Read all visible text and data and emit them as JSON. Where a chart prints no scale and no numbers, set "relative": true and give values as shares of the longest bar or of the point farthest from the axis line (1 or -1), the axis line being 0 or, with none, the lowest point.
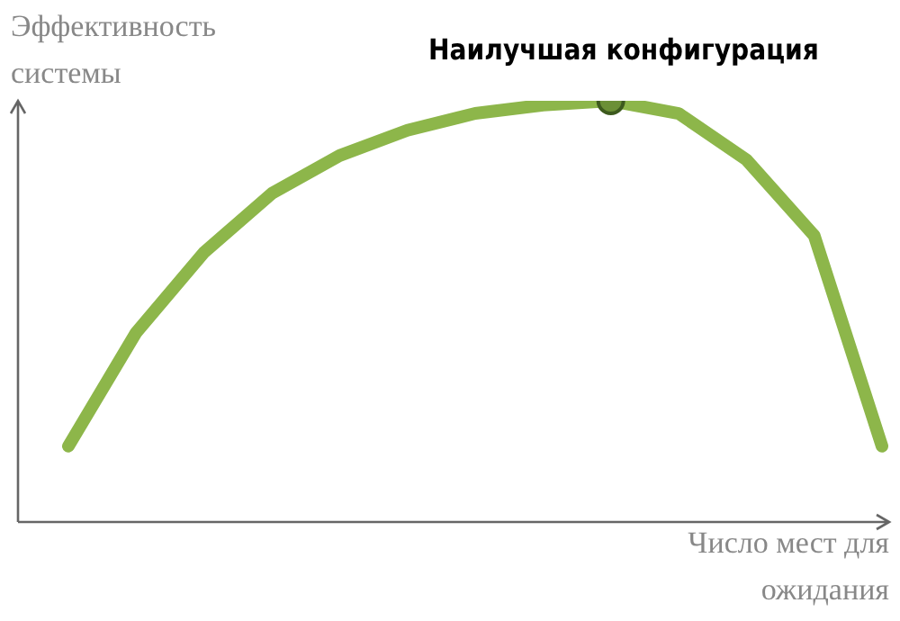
{
  "chart_data": {
    "type": "line",
    "relative": true,
    "ylabel": "Эффективность системы",
    "xlabel": "Число мест для ожидания",
    "categories": [
      null,
      null,
      null,
      null,
      null,
      null,
      null,
      null,
      null,
      null,
      null,
      null,
      null
    ],
    "series": [
      {
        "color": "#8db64a",
        "values": [
          0.18,
          0.45,
          0.64,
          0.78,
          0.87,
          0.93,
          0.97,
          0.99,
          1.0,
          0.97,
          0.86,
          0.68,
          0.18
        ]
      }
    ],
    "annotations": [
      {
        "text": "Наилучшая конфигурация",
        "y": 1.0
      }
    ],
    "grid": false,
    "legend": false,
    "marker": "none",
    "line_style": "solid"
  }
}
